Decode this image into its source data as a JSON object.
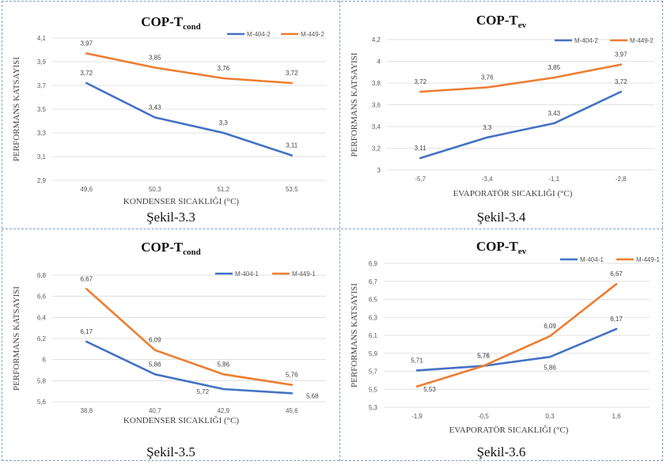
{
  "chart_data": [
    {
      "type": "line",
      "title_main": "COP-T",
      "title_sub": "cond",
      "xlabel": "KONDENSER SICAKLIĞI (°C)",
      "ylabel": "PERFORMANS KATSAYISI",
      "categories": [
        "49,6",
        "50,3",
        "51,2",
        "53,5"
      ],
      "yticks": [
        "2,9",
        "3,1",
        "3,3",
        "3,5",
        "3,7",
        "3,9",
        "4,1"
      ],
      "ylim": [
        2.9,
        4.1
      ],
      "legend": "top-right",
      "series": [
        {
          "name": "M-404-2",
          "color": "#4472c4",
          "values": [
            3.72,
            3.43,
            3.3,
            3.11
          ],
          "labels": [
            "3,72",
            "3,43",
            "3,3",
            "3,11"
          ]
        },
        {
          "name": "M-449-2",
          "color": "#ed7d31",
          "values": [
            3.97,
            3.85,
            3.76,
            3.72
          ],
          "labels": [
            "3,97",
            "3,85",
            "3,76",
            "3,72"
          ]
        }
      ],
      "caption": "Şekil-3.3"
    },
    {
      "type": "line",
      "title_main": "COP-T",
      "title_sub": "ev",
      "xlabel": "EVAPORATÖR SICAKLIĞI (°C)",
      "ylabel": "PERFORMANS KATSAYISI",
      "categories": [
        "-5,7",
        "-3,4",
        "-1,1",
        "-2,8"
      ],
      "yticks": [
        "3",
        "3,2",
        "3,4",
        "3,6",
        "3,8",
        "4",
        "4,2"
      ],
      "ylim": [
        3.0,
        4.2
      ],
      "legend": "top-right",
      "series": [
        {
          "name": "M-404-2",
          "color": "#4472c4",
          "values": [
            3.11,
            3.3,
            3.43,
            3.72
          ],
          "labels": [
            "3,11",
            "3,3",
            "3,43",
            "3,72"
          ]
        },
        {
          "name": "M-449-2",
          "color": "#ed7d31",
          "values": [
            3.72,
            3.76,
            3.85,
            3.97
          ],
          "labels": [
            "3,72",
            "3,76",
            "3,85",
            "3,97"
          ]
        }
      ],
      "caption": "Şekil-3.4"
    },
    {
      "type": "line",
      "title_main": "COP-T",
      "title_sub": "cond",
      "xlabel": "KONDENSER SICAKLIĞI (°C)",
      "ylabel": "PERFORMANS KATSAYISI",
      "categories": [
        "38,8",
        "40,7",
        "42,9",
        "45,6"
      ],
      "yticks": [
        "5,6",
        "5,8",
        "6",
        "6,2",
        "6,4",
        "6,6",
        "6,8"
      ],
      "ylim": [
        5.6,
        6.8
      ],
      "legend": "top-right",
      "series": [
        {
          "name": "M-404-1",
          "color": "#4472c4",
          "values": [
            6.17,
            5.86,
            5.72,
            5.68
          ],
          "labels": [
            "6,17",
            "5,86",
            "5,72",
            "5,68"
          ]
        },
        {
          "name": "M-449-1",
          "color": "#ed7d31",
          "values": [
            6.67,
            6.09,
            5.86,
            5.76
          ],
          "labels": [
            "6,67",
            "6,09",
            "5,86",
            "5,76"
          ]
        }
      ],
      "caption": "Şekil-3.5"
    },
    {
      "type": "line",
      "title_main": "COP-T",
      "title_sub": "ev",
      "xlabel": "EVAPORATÖR SICAKLIĞI (°C)",
      "ylabel": "PERFORMANS KATSAYISI",
      "categories": [
        "-1,9",
        "-0,5",
        "0,3",
        "1,6"
      ],
      "yticks": [
        "5,3",
        "5,5",
        "5,7",
        "5,9",
        "6,1",
        "6,3",
        "6,5",
        "6,7",
        "6,9"
      ],
      "ylim": [
        5.3,
        6.9
      ],
      "legend": "top-right",
      "series": [
        {
          "name": "M-404-1",
          "color": "#4472c4",
          "values": [
            5.71,
            5.76,
            5.86,
            6.17
          ],
          "labels": [
            "5,71",
            "5,76",
            "5,86",
            "6,17"
          ]
        },
        {
          "name": "M-449-1",
          "color": "#ed7d31",
          "values": [
            5.53,
            5.76,
            6.09,
            6.67
          ],
          "labels": [
            "5,53",
            "5,76",
            "6,09",
            "6,67"
          ]
        }
      ],
      "caption": "Şekil-3.6"
    }
  ]
}
